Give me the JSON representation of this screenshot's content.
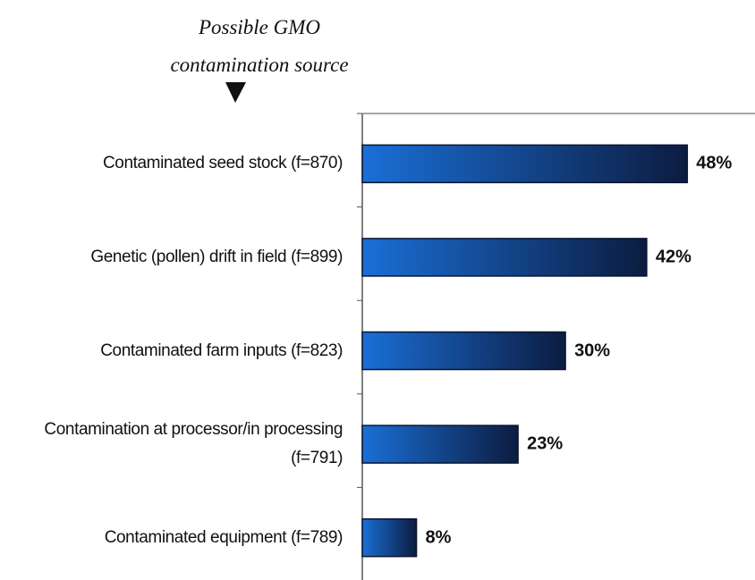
{
  "chart_data": {
    "type": "bar",
    "orientation": "horizontal",
    "annotation": "Possible GMO contamination source",
    "categories": [
      "Contaminated seed stock (f=870)",
      "Genetic (pollen) drift in field (f=899)",
      "Contaminated farm inputs (f=823)",
      "Contamination at processor/in processing (f=791)",
      "Contaminated equipment (f=789)"
    ],
    "values": [
      48,
      42,
      30,
      23,
      8
    ],
    "value_labels": [
      "48%",
      "42%",
      "30%",
      "23%",
      "8%"
    ],
    "xlim": [
      0,
      58
    ],
    "color": "#1a6fd6"
  }
}
